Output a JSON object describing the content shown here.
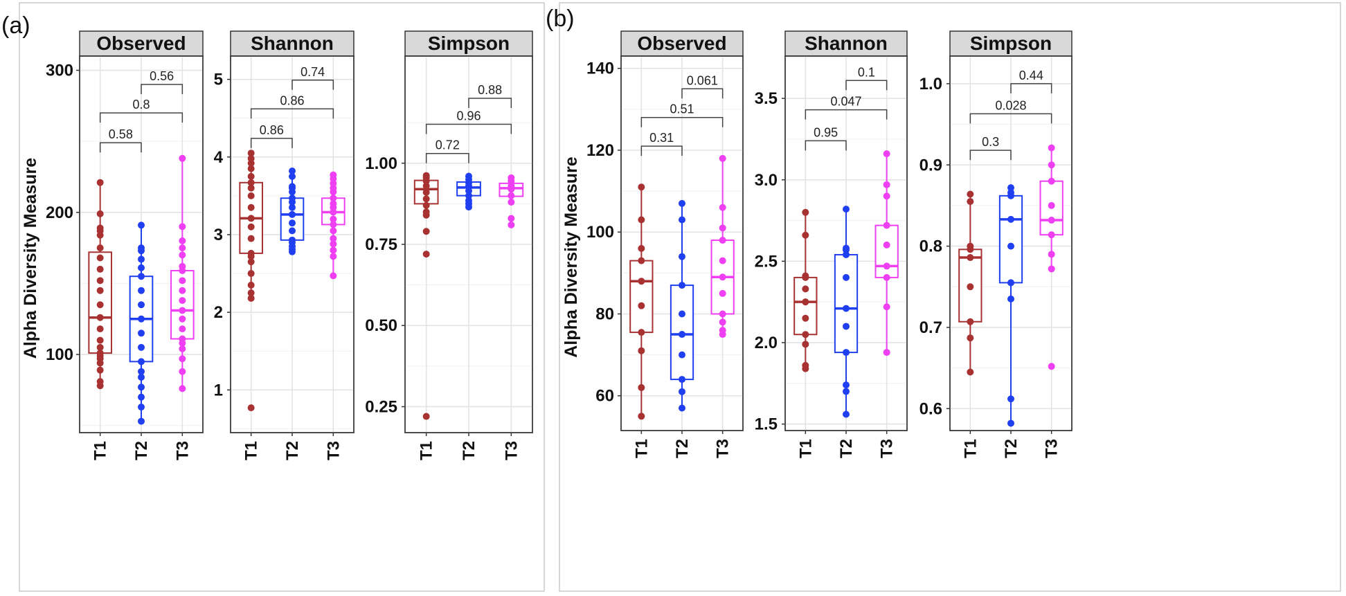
{
  "figure": {
    "panel_labels": [
      "(a)",
      "(b)"
    ],
    "category_colors": {
      "T1": "#a83232",
      "T2": "#1f3ff0",
      "T3": "#ef3ff2"
    }
  },
  "chart_data": [
    {
      "type": "boxplot",
      "group": "(a)",
      "title": "Observed",
      "ylabel": "Alpha Diversity Measure",
      "ylim": [
        45,
        310
      ],
      "yticks": [
        100,
        200,
        300
      ],
      "ytick_labels": [
        "100",
        "200",
        "300"
      ],
      "categories": [
        "T1",
        "T2",
        "T3"
      ],
      "boxes": [
        {
          "q1": 101,
          "median": 126,
          "q3": 172,
          "whisker_low": 78,
          "whisker_high": 221,
          "points": [
            78,
            81,
            89,
            94,
            97,
            99,
            101,
            105,
            110,
            118,
            126,
            135,
            145,
            152,
            160,
            168,
            175,
            184,
            187,
            189,
            199,
            221
          ]
        },
        {
          "q1": 95,
          "median": 125,
          "q3": 155,
          "whisker_low": 53,
          "whisker_high": 191,
          "points": [
            53,
            63,
            70,
            77,
            84,
            88,
            95,
            105,
            115,
            125,
            135,
            145,
            155,
            161,
            167,
            173,
            175,
            191
          ]
        },
        {
          "q1": 111,
          "median": 131,
          "q3": 159,
          "whisker_low": 76,
          "whisker_high": 238,
          "points": [
            76,
            88,
            97,
            104,
            108,
            111,
            118,
            125,
            131,
            138,
            145,
            152,
            159,
            162,
            170,
            175,
            180,
            190,
            238
          ]
        }
      ],
      "comparisons": [
        {
          "from": "T1",
          "to": "T2",
          "label": "0.58",
          "level": 249
        },
        {
          "from": "T1",
          "to": "T3",
          "label": "0.8",
          "level": 270
        },
        {
          "from": "T2",
          "to": "T3",
          "label": "0.56",
          "level": 290
        }
      ]
    },
    {
      "type": "boxplot",
      "group": "(a)",
      "title": "Shannon",
      "ylim": [
        0.45,
        5.3
      ],
      "yticks": [
        1,
        2,
        3,
        4,
        5
      ],
      "ytick_labels": [
        "1",
        "2",
        "3",
        "4",
        "5"
      ],
      "categories": [
        "T1",
        "T2",
        "T3"
      ],
      "boxes": [
        {
          "q1": 2.76,
          "median": 3.21,
          "q3": 3.67,
          "whisker_low": 2.18,
          "whisker_high": 4.05,
          "points": [
            0.77,
            2.18,
            2.25,
            2.35,
            2.5,
            2.65,
            2.72,
            2.76,
            2.95,
            3.1,
            3.21,
            3.35,
            3.5,
            3.6,
            3.67,
            3.75,
            3.85,
            3.92,
            3.98,
            4.05
          ]
        },
        {
          "q1": 2.93,
          "median": 3.26,
          "q3": 3.47,
          "whisker_low": 2.78,
          "whisker_high": 3.82,
          "points": [
            2.78,
            2.81,
            2.85,
            2.9,
            2.93,
            3.05,
            3.15,
            3.26,
            3.35,
            3.42,
            3.47,
            3.55,
            3.6,
            3.62,
            3.75,
            3.82
          ]
        },
        {
          "q1": 3.13,
          "median": 3.29,
          "q3": 3.47,
          "whisker_low": 2.47,
          "whisker_high": 3.77,
          "points": [
            2.47,
            2.72,
            2.8,
            2.88,
            2.95,
            3.05,
            3.13,
            3.2,
            3.29,
            3.35,
            3.4,
            3.47,
            3.55,
            3.6,
            3.66,
            3.72,
            3.77
          ]
        }
      ],
      "comparisons": [
        {
          "from": "T1",
          "to": "T2",
          "label": "0.86",
          "level": 4.24
        },
        {
          "from": "T1",
          "to": "T3",
          "label": "0.86",
          "level": 4.62
        },
        {
          "from": "T2",
          "to": "T3",
          "label": "0.74",
          "level": 4.99
        }
      ]
    },
    {
      "type": "boxplot",
      "group": "(a)",
      "title": "Simpson",
      "ylim": [
        0.17,
        1.33
      ],
      "yticks": [
        0.25,
        0.5,
        0.75,
        1.0
      ],
      "ytick_labels": [
        "0.25",
        "0.50",
        "0.75",
        "1.00"
      ],
      "categories": [
        "T1",
        "T2",
        "T3"
      ],
      "boxes": [
        {
          "q1": 0.875,
          "median": 0.92,
          "q3": 0.947,
          "whisker_low": 0.84,
          "whisker_high": 0.962,
          "points": [
            0.22,
            0.72,
            0.79,
            0.84,
            0.85,
            0.87,
            0.89,
            0.91,
            0.93,
            0.945,
            0.955,
            0.962
          ]
        },
        {
          "q1": 0.9,
          "median": 0.925,
          "q3": 0.942,
          "whisker_low": 0.865,
          "whisker_high": 0.96,
          "points": [
            0.865,
            0.875,
            0.885,
            0.9,
            0.915,
            0.93,
            0.94,
            0.95,
            0.96
          ]
        },
        {
          "q1": 0.898,
          "median": 0.923,
          "q3": 0.938,
          "whisker_low": 0.88,
          "whisker_high": 0.955,
          "points": [
            0.81,
            0.83,
            0.88,
            0.9,
            0.92,
            0.93,
            0.945,
            0.955
          ]
        }
      ],
      "comparisons": [
        {
          "from": "T1",
          "to": "T2",
          "label": "0.72",
          "level": 1.03
        },
        {
          "from": "T1",
          "to": "T3",
          "label": "0.96",
          "level": 1.12
        },
        {
          "from": "T2",
          "to": "T3",
          "label": "0.88",
          "level": 1.2
        }
      ]
    },
    {
      "type": "boxplot",
      "group": "(b)",
      "title": "Observed",
      "ylabel": "Alpha Diversity Measure",
      "ylim": [
        51.5,
        143
      ],
      "yticks": [
        60,
        80,
        100,
        120,
        140
      ],
      "ytick_labels": [
        "60",
        "80",
        "100",
        "120",
        "140"
      ],
      "categories": [
        "T1",
        "T2",
        "T3"
      ],
      "boxes": [
        {
          "q1": 75.5,
          "median": 88,
          "q3": 93,
          "whisker_low": 55,
          "whisker_high": 111,
          "points": [
            55,
            62,
            71,
            75.5,
            82,
            88,
            93,
            96,
            103,
            111
          ]
        },
        {
          "q1": 64,
          "median": 75,
          "q3": 87,
          "whisker_low": 57,
          "whisker_high": 107,
          "points": [
            57,
            61,
            64,
            70,
            75,
            80,
            87,
            94,
            103,
            107
          ]
        },
        {
          "q1": 80,
          "median": 89,
          "q3": 98,
          "whisker_low": 75,
          "whisker_high": 118,
          "points": [
            75,
            76,
            78,
            80,
            85,
            89,
            93,
            98,
            101,
            106,
            118
          ]
        }
      ],
      "comparisons": [
        {
          "from": "T1",
          "to": "T2",
          "label": "0.31",
          "level": 121
        },
        {
          "from": "T1",
          "to": "T3",
          "label": "0.51",
          "level": 128
        },
        {
          "from": "T2",
          "to": "T3",
          "label": "0.061",
          "level": 135
        }
      ]
    },
    {
      "type": "boxplot",
      "group": "(b)",
      "title": "Shannon",
      "ylim": [
        1.46,
        3.76
      ],
      "yticks": [
        1.5,
        2.0,
        2.5,
        3.0,
        3.5
      ],
      "ytick_labels": [
        "1.5",
        "2.0",
        "2.5",
        "3.0",
        "3.5"
      ],
      "categories": [
        "T1",
        "T2",
        "T3"
      ],
      "boxes": [
        {
          "q1": 2.05,
          "median": 2.25,
          "q3": 2.4,
          "whisker_low": 1.85,
          "whisker_high": 2.8,
          "points": [
            1.84,
            1.86,
            1.99,
            2.05,
            2.15,
            2.25,
            2.33,
            2.4,
            2.41,
            2.66,
            2.8
          ]
        },
        {
          "q1": 1.94,
          "median": 2.21,
          "q3": 2.54,
          "whisker_low": 1.56,
          "whisker_high": 2.82,
          "points": [
            1.56,
            1.7,
            1.74,
            1.94,
            2.1,
            2.21,
            2.4,
            2.54,
            2.57,
            2.58,
            2.82
          ]
        },
        {
          "q1": 2.4,
          "median": 2.47,
          "q3": 2.72,
          "whisker_low": 1.94,
          "whisker_high": 3.16,
          "points": [
            1.94,
            2.22,
            2.4,
            2.47,
            2.6,
            2.72,
            2.9,
            2.97,
            3.16
          ]
        }
      ],
      "comparisons": [
        {
          "from": "T1",
          "to": "T2",
          "label": "0.95",
          "level": 3.24
        },
        {
          "from": "T1",
          "to": "T3",
          "label": "0.047",
          "level": 3.43
        },
        {
          "from": "T2",
          "to": "T3",
          "label": "0.1",
          "level": 3.61
        }
      ]
    },
    {
      "type": "boxplot",
      "group": "(b)",
      "title": "Simpson",
      "ylim": [
        0.573,
        1.034
      ],
      "yticks": [
        0.6,
        0.7,
        0.8,
        0.9,
        1.0
      ],
      "ytick_labels": [
        "0.6",
        "0.7",
        "0.8",
        "0.9",
        "1.0"
      ],
      "categories": [
        "T1",
        "T2",
        "T3"
      ],
      "boxes": [
        {
          "q1": 0.707,
          "median": 0.786,
          "q3": 0.796,
          "whisker_low": 0.645,
          "whisker_high": 0.864,
          "points": [
            0.645,
            0.687,
            0.707,
            0.75,
            0.786,
            0.796,
            0.8,
            0.855,
            0.864
          ]
        },
        {
          "q1": 0.755,
          "median": 0.833,
          "q3": 0.862,
          "whisker_low": 0.582,
          "whisker_high": 0.872,
          "points": [
            0.582,
            0.612,
            0.735,
            0.755,
            0.8,
            0.833,
            0.862,
            0.866,
            0.872
          ]
        },
        {
          "q1": 0.814,
          "median": 0.832,
          "q3": 0.88,
          "whisker_low": 0.772,
          "whisker_high": 0.921,
          "points": [
            0.652,
            0.772,
            0.79,
            0.814,
            0.832,
            0.85,
            0.88,
            0.9,
            0.921
          ]
        }
      ],
      "comparisons": [
        {
          "from": "T1",
          "to": "T2",
          "label": "0.3",
          "level": 0.918
        },
        {
          "from": "T1",
          "to": "T3",
          "label": "0.028",
          "level": 0.963
        },
        {
          "from": "T2",
          "to": "T3",
          "label": "0.44",
          "level": 1.0
        }
      ]
    }
  ]
}
